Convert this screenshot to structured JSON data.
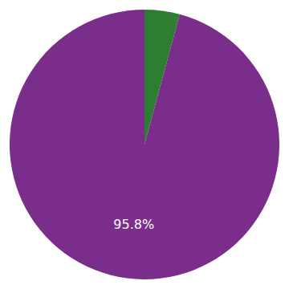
{
  "chart_data": {
    "type": "pie",
    "values": [
      95.8,
      4.2
    ],
    "colors": [
      "#7B2D8B",
      "#2E7D32"
    ],
    "data_labels": true,
    "value_labels": [
      "95.8%",
      null
    ]
  }
}
